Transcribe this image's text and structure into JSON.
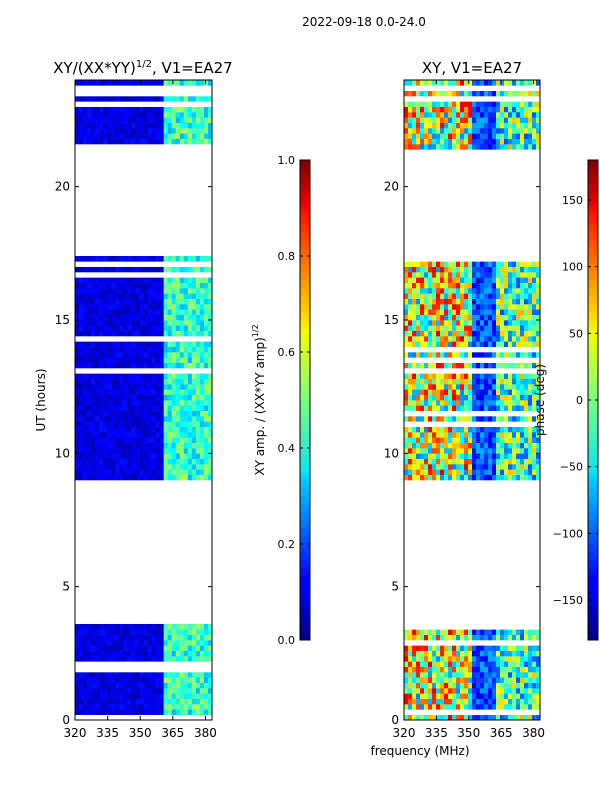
{
  "suptitle": "2022-09-18 0.0-24.0",
  "chart_data": [
    {
      "type": "heatmap",
      "title_base": "XY/(XX*YY)",
      "title_exponent": "1/2",
      "title_tail": ", V1=EA27",
      "xlabel": "",
      "ylabel": "UT (hours)",
      "xlim": [
        320,
        383
      ],
      "ylim": [
        0,
        24
      ],
      "x_ticks": [
        "320",
        "335",
        "350",
        "365",
        "380"
      ],
      "x_tick_values": [
        320,
        335,
        350,
        365,
        380
      ],
      "y_ticks": [
        "0",
        "5",
        "10",
        "15",
        "20"
      ],
      "y_tick_values": [
        0,
        5,
        10,
        15,
        20
      ],
      "data_blocks_hours": [
        [
          0,
          3.6
        ],
        [
          9.0,
          17.4
        ],
        [
          21.4,
          24
        ]
      ],
      "high_band_mhz": [
        360,
        383
      ],
      "colorbar": {
        "label_base": "XY amp. / (XX*YY amp)",
        "label_exponent": "1/2",
        "range": [
          0.0,
          1.0
        ],
        "ticks": [
          "0.0",
          "0.2",
          "0.4",
          "0.6",
          "0.8",
          "1.0"
        ],
        "tick_values": [
          0,
          0.2,
          0.4,
          0.6,
          0.8,
          1.0
        ]
      }
    },
    {
      "type": "heatmap",
      "title": "XY, V1=EA27",
      "xlabel": "frequency (MHz)",
      "ylabel": "",
      "xlim": [
        320,
        383
      ],
      "ylim": [
        0,
        24
      ],
      "x_ticks": [
        "320",
        "335",
        "350",
        "365",
        "380"
      ],
      "x_tick_values": [
        320,
        335,
        350,
        365,
        380
      ],
      "y_ticks": [
        "0",
        "5",
        "10",
        "15",
        "20"
      ],
      "y_tick_values": [
        0,
        5,
        10,
        15,
        20
      ],
      "data_blocks_hours": [
        [
          0,
          3.6
        ],
        [
          9.0,
          17.4
        ],
        [
          21.4,
          24
        ]
      ],
      "colorbar": {
        "label": "phase (deg)",
        "range": [
          -180,
          180
        ],
        "ticks": [
          "−150",
          "−100",
          "−50",
          "0",
          "50",
          "100",
          "150"
        ],
        "tick_values": [
          -150,
          -100,
          -50,
          0,
          50,
          100,
          150
        ]
      }
    }
  ]
}
